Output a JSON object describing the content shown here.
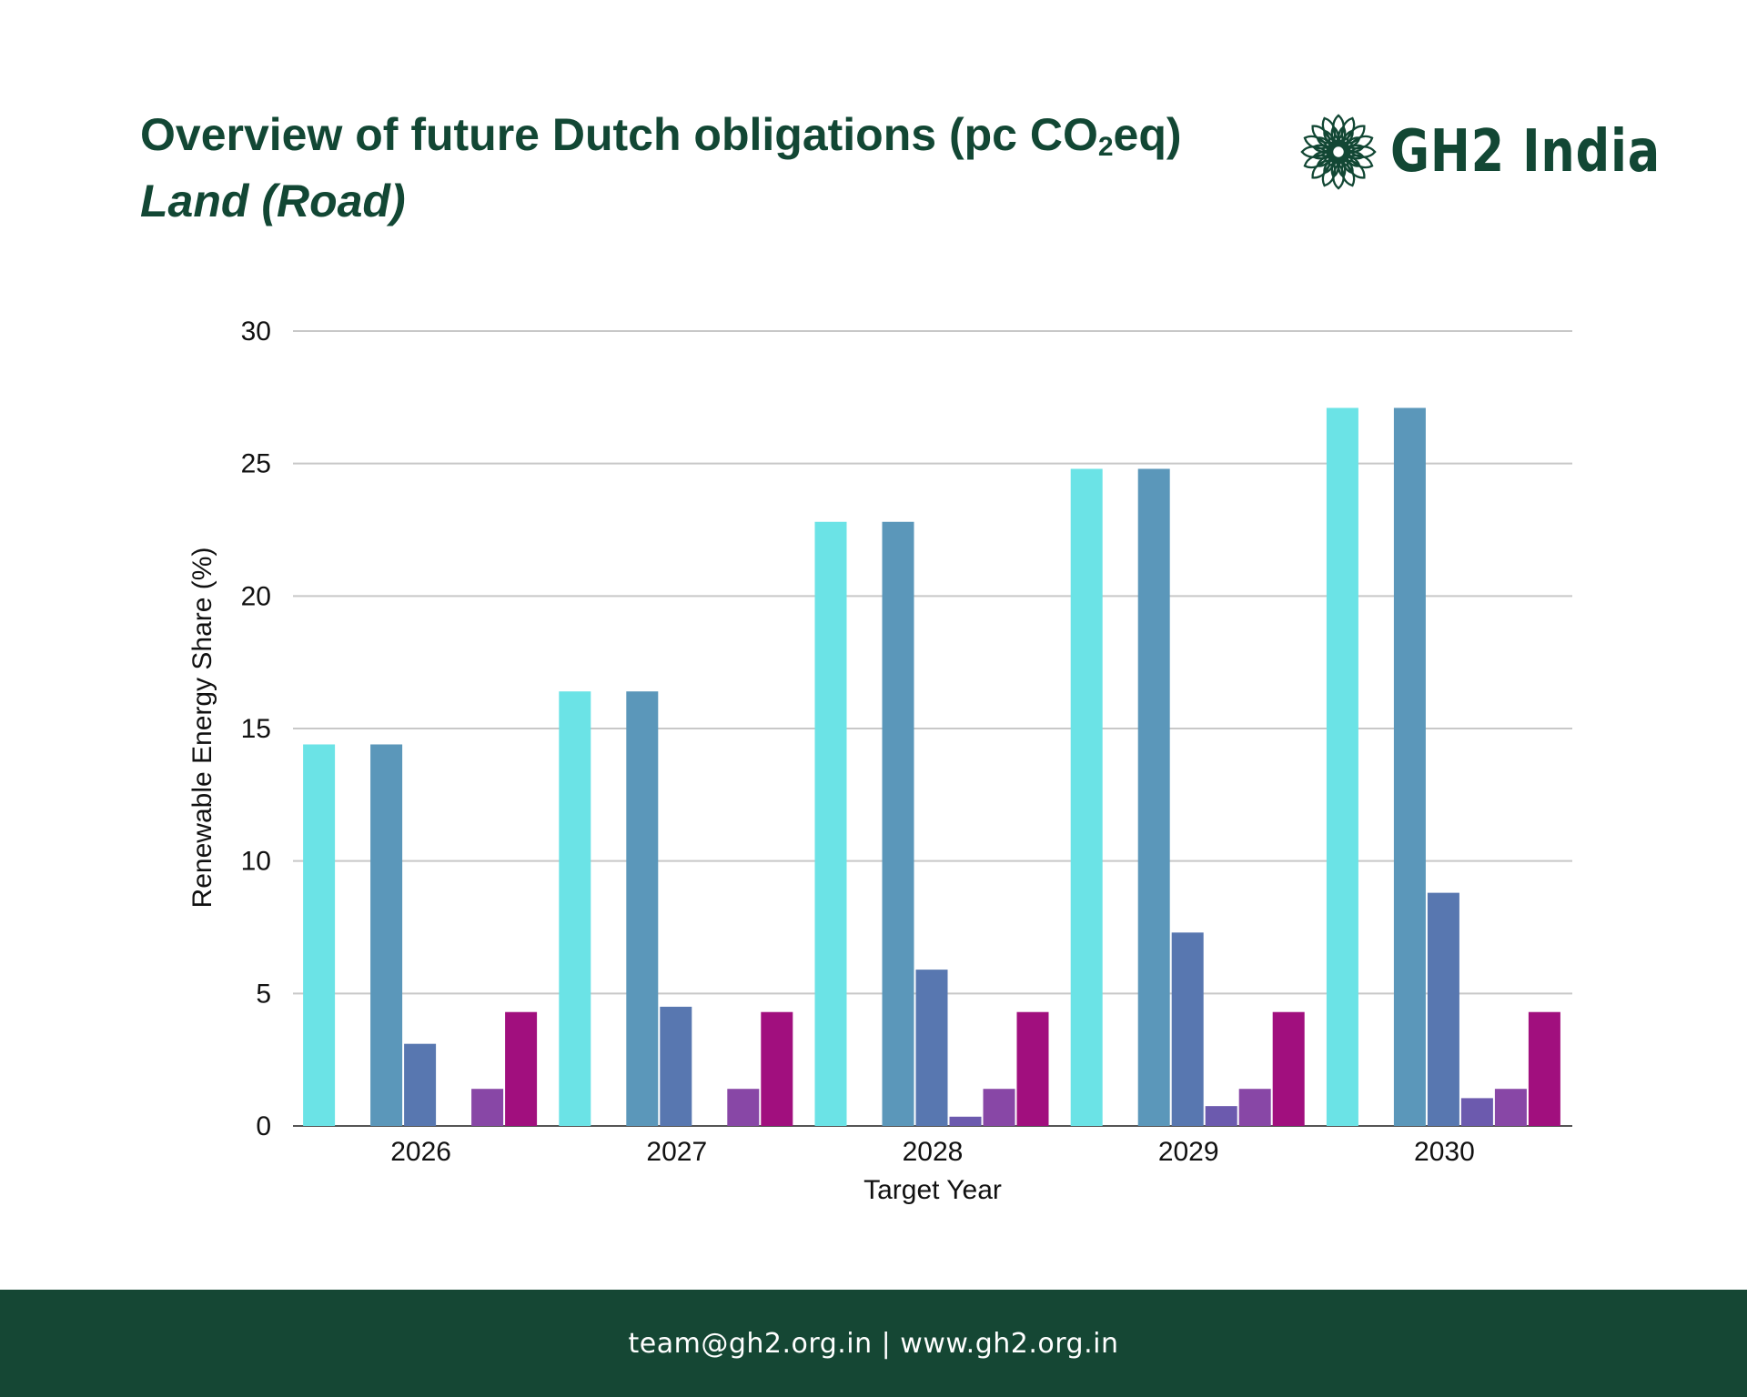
{
  "header": {
    "title_main": "Overview of future Dutch obligations (pc CO",
    "title_sub": "2",
    "title_end": "eq)",
    "subtitle": "Land (Road)"
  },
  "logo": {
    "text": "GH2 India",
    "icon": "mandala-lotus-icon"
  },
  "footer": {
    "contact": "team@gh2.org.in | www.gh2.org.in"
  },
  "colors": {
    "brand_green": "#124734",
    "footer_bg": "#154734",
    "grid": "#c8c8c8"
  },
  "chart_data": {
    "type": "bar",
    "categories": [
      "2026",
      "2027",
      "2028",
      "2029",
      "2030"
    ],
    "series": [
      {
        "color": "#6be3e6",
        "values": [
          14.4,
          16.4,
          22.8,
          24.8,
          27.1
        ]
      },
      {
        "color": "#5b97ba",
        "values": [
          0,
          0,
          0,
          0,
          0
        ]
      },
      {
        "color": "#5b97ba",
        "values": [
          14.4,
          16.4,
          22.8,
          24.8,
          27.1
        ]
      },
      {
        "color": "#5877b0",
        "values": [
          3.1,
          4.5,
          5.9,
          7.3,
          8.8
        ]
      },
      {
        "color": "#6c5aae",
        "values": [
          0,
          0,
          0.35,
          0.75,
          1.05
        ]
      },
      {
        "color": "#8847a6",
        "values": [
          1.4,
          1.4,
          1.4,
          1.4,
          1.4
        ]
      },
      {
        "color": "#a10f7e",
        "values": [
          4.3,
          4.3,
          4.3,
          4.3,
          4.3
        ]
      }
    ],
    "xlabel": "Target Year",
    "ylabel": "Renewable Energy Share (%)",
    "ylim": [
      0,
      30
    ],
    "yticks": [
      0,
      5,
      10,
      15,
      20,
      25,
      30
    ],
    "grid": true,
    "legend": "none"
  }
}
